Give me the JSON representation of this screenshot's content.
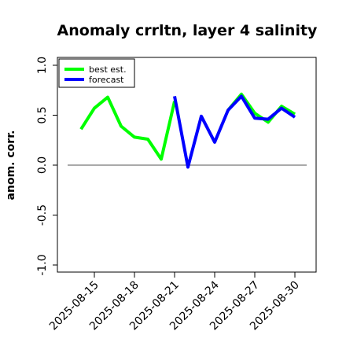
{
  "chart_data": {
    "type": "line",
    "title": "Anomaly crrltn, layer 4 salinity",
    "xlabel": "",
    "ylabel": "anom. corr.",
    "ylim": [
      -1.0,
      1.0
    ],
    "yticks": [
      "-1.0",
      "-0.5",
      "0.0",
      "0.5",
      "1.0"
    ],
    "ytick_values": [
      -1.0,
      -0.5,
      0.0,
      0.5,
      1.0
    ],
    "x": [
      "2025-08-14",
      "2025-08-15",
      "2025-08-16",
      "2025-08-17",
      "2025-08-18",
      "2025-08-19",
      "2025-08-20",
      "2025-08-21",
      "2025-08-22",
      "2025-08-23",
      "2025-08-24",
      "2025-08-25",
      "2025-08-26",
      "2025-08-27",
      "2025-08-28",
      "2025-08-29",
      "2025-08-30"
    ],
    "xticks": [
      "2025-08-15",
      "2025-08-18",
      "2025-08-21",
      "2025-08-24",
      "2025-08-27",
      "2025-08-30"
    ],
    "highlighted_xtick": "2025-08-21",
    "highlight_color": "#228b22",
    "zero_line": 0.0,
    "grid": false,
    "legend_position": "top-left",
    "series": [
      {
        "name": "best est.",
        "color": "#00ff00",
        "values": [
          0.36,
          0.57,
          0.68,
          0.39,
          0.28,
          0.26,
          0.06,
          0.64,
          null,
          null,
          null,
          0.55,
          0.71,
          0.52,
          0.43,
          0.59,
          0.51
        ]
      },
      {
        "name": "forecast",
        "color": "#0000ff",
        "values": [
          null,
          null,
          null,
          null,
          null,
          null,
          null,
          0.69,
          -0.02,
          0.49,
          0.23,
          0.55,
          0.69,
          0.47,
          0.46,
          0.57,
          0.48
        ]
      }
    ]
  }
}
